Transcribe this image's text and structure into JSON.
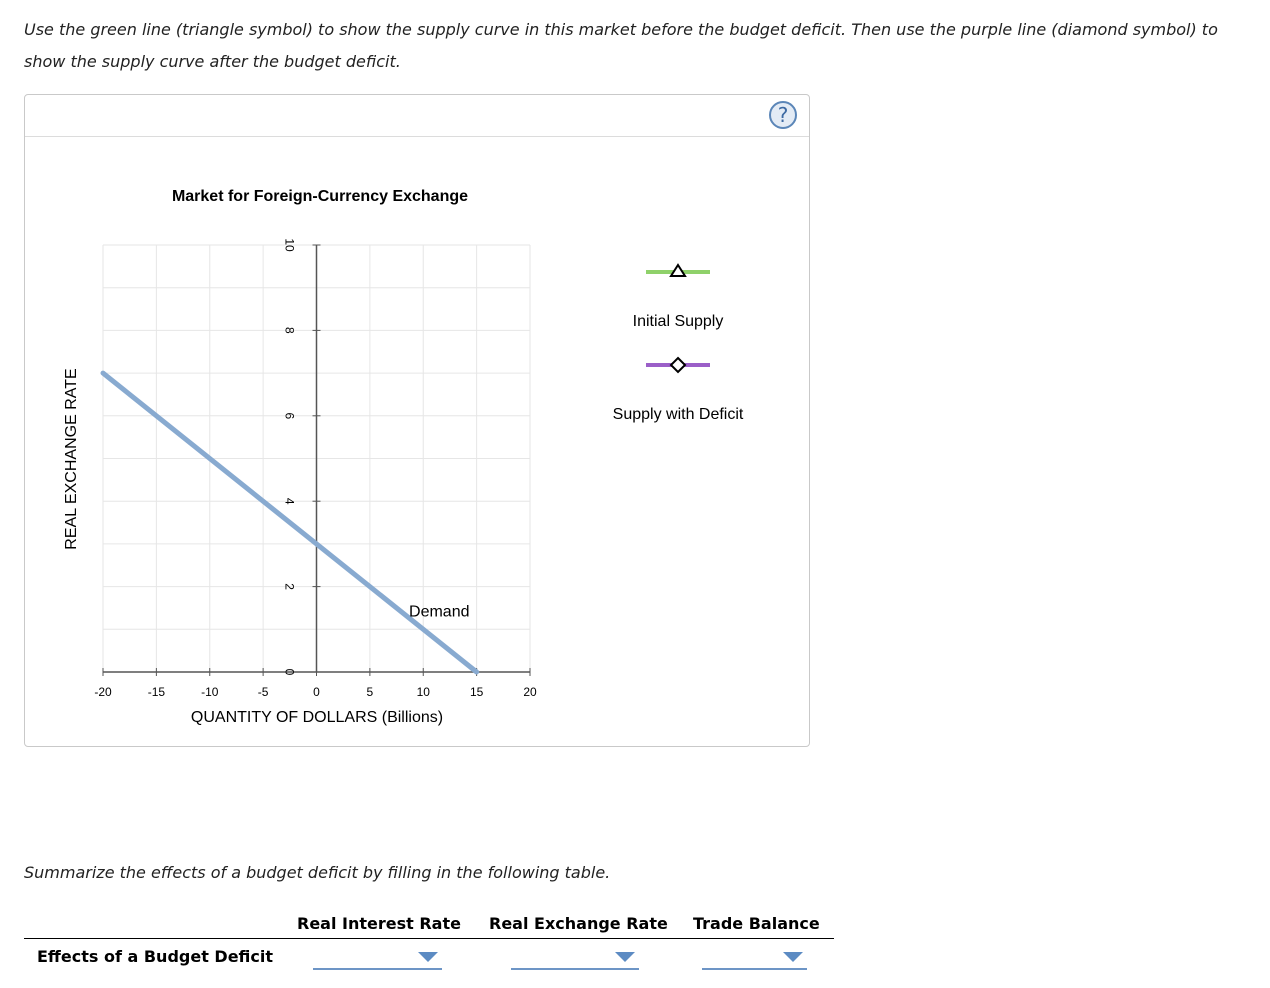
{
  "instructions": "Use the green line (triangle symbol) to show the supply curve in this market before the budget deficit. Then use the purple line (diamond symbol) to show the supply curve after the budget deficit.",
  "help_label": "?",
  "summary_text": "Summarize the effects of a budget deficit by filling in the following table.",
  "table": {
    "columns": [
      "Real Interest Rate",
      "Real Exchange Rate",
      "Trade Balance"
    ],
    "row_label": "Effects of a Budget Deficit"
  },
  "colors": {
    "demand": "#88aad0",
    "initial_supply": "#8fd16a",
    "supply_with_deficit": "#9b5fc8",
    "grid": "#e6e6e6"
  },
  "tools": [
    {
      "label": "Initial Supply",
      "symbol": "triangle",
      "color": "#8fd16a"
    },
    {
      "label": "Supply with Deficit",
      "symbol": "diamond",
      "color": "#9b5fc8"
    }
  ],
  "chart_data": {
    "type": "line",
    "title": "Market for Foreign-Currency Exchange",
    "xlabel": "QUANTITY OF DOLLARS (Billions)",
    "ylabel": "REAL EXCHANGE RATE",
    "xlim": [
      -20,
      20
    ],
    "ylim": [
      0,
      10
    ],
    "x_ticks": [
      -20,
      -15,
      -10,
      -5,
      0,
      5,
      10,
      15,
      20
    ],
    "y_ticks": [
      0,
      2,
      4,
      6,
      8,
      10
    ],
    "grid": true,
    "series": [
      {
        "name": "Demand",
        "x": [
          -20,
          15
        ],
        "y": [
          7,
          0
        ],
        "color": "#88aad0"
      }
    ]
  }
}
